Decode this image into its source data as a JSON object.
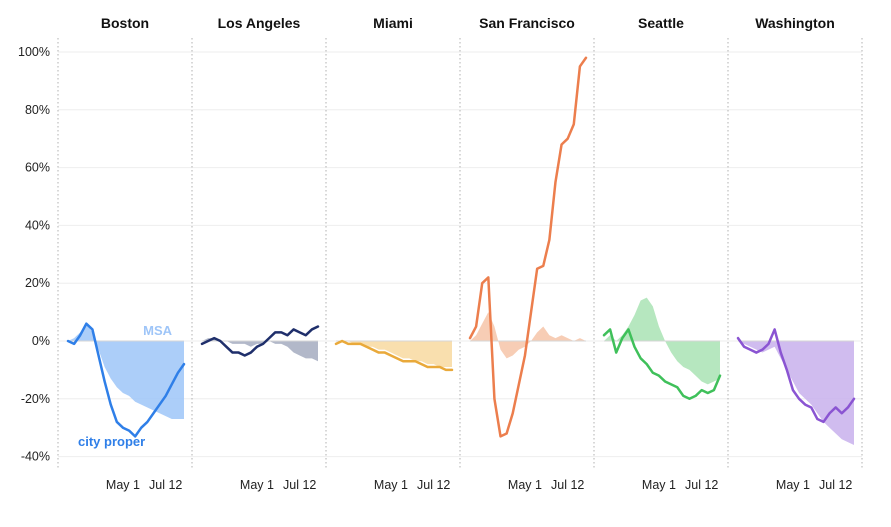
{
  "chart_data": {
    "type": "area",
    "title": "",
    "xlabel": "",
    "ylabel": "",
    "ylim": [
      -40,
      100
    ],
    "yticks": [
      -40,
      -20,
      0,
      20,
      40,
      60,
      80,
      100
    ],
    "ytick_labels": [
      "-40%",
      "-20%",
      "0%",
      "20%",
      "40%",
      "60%",
      "80%",
      "100%"
    ],
    "x": [
      1,
      2,
      3,
      4,
      5,
      6,
      7,
      8,
      9,
      10,
      11,
      12,
      13,
      14,
      15,
      16,
      17,
      18,
      19,
      20
    ],
    "x_tick_positions": [
      10,
      17
    ],
    "x_tick_labels": [
      "May 1",
      "Jul 12"
    ],
    "legend": {
      "msa_label": "MSA",
      "city_label": "city proper"
    },
    "panels": [
      {
        "name": "Boston",
        "color": "#2f7fe8",
        "fill": "#9ec5f8",
        "msa": [
          0,
          1,
          3,
          6,
          3,
          -3,
          -9,
          -13,
          -16,
          -18,
          -19,
          -21,
          -22,
          -23,
          -24,
          -25,
          -26,
          -27,
          -27,
          -27
        ],
        "city": [
          0,
          -1,
          2,
          6,
          4,
          -5,
          -14,
          -22,
          -28,
          -30,
          -31,
          -33,
          -30,
          -28,
          -25,
          -22,
          -19,
          -15,
          -11,
          -8
        ]
      },
      {
        "name": "Los Angeles",
        "color": "#1f2f6b",
        "fill": "#a4abc0",
        "msa": [
          0,
          1,
          1,
          0,
          0,
          -1,
          -1,
          -1,
          -2,
          -1,
          -1,
          0,
          -1,
          -1,
          -2,
          -4,
          -5,
          -6,
          -6,
          -7
        ],
        "city": [
          -1,
          0,
          1,
          0,
          -2,
          -4,
          -4,
          -5,
          -4,
          -2,
          -1,
          1,
          3,
          3,
          2,
          4,
          3,
          2,
          4,
          5
        ]
      },
      {
        "name": "Miami",
        "color": "#e9a93a",
        "fill": "#f8d9a0",
        "msa": [
          0,
          0,
          0,
          -1,
          -1,
          -2,
          -2,
          -3,
          -3,
          -4,
          -5,
          -6,
          -6,
          -7,
          -7,
          -8,
          -8,
          -9,
          -9,
          -9
        ],
        "city": [
          -1,
          0,
          -1,
          -1,
          -1,
          -2,
          -3,
          -4,
          -4,
          -5,
          -6,
          -7,
          -7,
          -7,
          -8,
          -9,
          -9,
          -9,
          -10,
          -10
        ]
      },
      {
        "name": "San Francisco",
        "color": "#ec7e4d",
        "fill": "#f6c4a8",
        "msa": [
          0,
          2,
          6,
          10,
          5,
          -3,
          -6,
          -5,
          -3,
          -2,
          0,
          3,
          5,
          2,
          1,
          2,
          1,
          0,
          1,
          0
        ],
        "city": [
          1,
          5,
          20,
          22,
          -20,
          -33,
          -32,
          -25,
          -15,
          -5,
          10,
          25,
          26,
          35,
          55,
          68,
          70,
          75,
          95,
          98
        ]
      },
      {
        "name": "Seattle",
        "color": "#3fc05a",
        "fill": "#a9e3b4",
        "msa": [
          0,
          2,
          0,
          2,
          5,
          9,
          14,
          15,
          12,
          5,
          0,
          -4,
          -7,
          -9,
          -10,
          -12,
          -14,
          -15,
          -14,
          -13
        ],
        "city": [
          2,
          4,
          -4,
          1,
          4,
          -2,
          -6,
          -8,
          -11,
          -12,
          -14,
          -15,
          -16,
          -19,
          -20,
          -19,
          -17,
          -18,
          -17,
          -12
        ]
      },
      {
        "name": "Washington",
        "color": "#8a54d2",
        "fill": "#c8b0ec",
        "msa": [
          0,
          -1,
          -2,
          -3,
          -4,
          -3,
          -2,
          -6,
          -10,
          -14,
          -18,
          -20,
          -22,
          -25,
          -28,
          -30,
          -32,
          -34,
          -35,
          -36
        ],
        "city": [
          1,
          -2,
          -3,
          -4,
          -3,
          -1,
          4,
          -4,
          -10,
          -17,
          -20,
          -22,
          -23,
          -27,
          -28,
          -25,
          -23,
          -25,
          -23,
          -20
        ]
      }
    ]
  }
}
